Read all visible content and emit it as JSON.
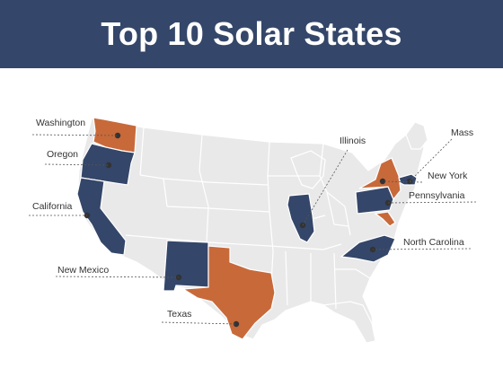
{
  "title": "Top 10 Solar States",
  "colors": {
    "header_bg": "#344669",
    "header_text": "#ffffff",
    "navy": "#344669",
    "orange": "#c8693a",
    "base_state": "#e9e9ea"
  },
  "states": [
    {
      "key": "washington",
      "label": "Washington",
      "color_group": "orange"
    },
    {
      "key": "oregon",
      "label": "Oregon",
      "color_group": "navy"
    },
    {
      "key": "california",
      "label": "California",
      "color_group": "navy"
    },
    {
      "key": "new_mexico",
      "label": "New Mexico",
      "color_group": "navy"
    },
    {
      "key": "texas",
      "label": "Texas",
      "color_group": "orange"
    },
    {
      "key": "illinois",
      "label": "Illinois",
      "color_group": "navy"
    },
    {
      "key": "mass",
      "label": "Mass",
      "color_group": "navy"
    },
    {
      "key": "new_york",
      "label": "New York",
      "color_group": "orange"
    },
    {
      "key": "pennsylvania",
      "label": "Pennsylvania",
      "color_group": "navy"
    },
    {
      "key": "north_carolina",
      "label": "North Carolina",
      "color_group": "navy"
    }
  ]
}
